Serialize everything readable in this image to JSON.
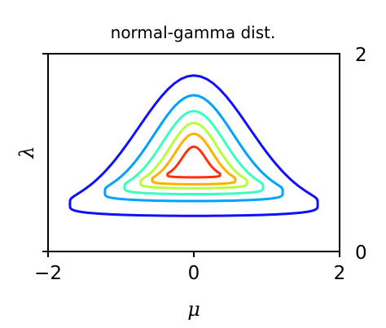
{
  "chart_data": {
    "type": "contour",
    "title": "normal-gamma dist.",
    "xlabel": "μ",
    "ylabel": "λ",
    "xlim": [
      -2,
      2
    ],
    "ylim": [
      0,
      2
    ],
    "xticks": [
      {
        "value": -2,
        "label": "−2"
      },
      {
        "value": 0,
        "label": "0"
      },
      {
        "value": 2,
        "label": "2"
      }
    ],
    "yticks_right": [
      {
        "value": 0,
        "label": "0"
      },
      {
        "value": 2,
        "label": "2"
      }
    ],
    "grid": false,
    "contours": [
      {
        "level": 1,
        "color": "#1010ff",
        "mu_half_width_at_base": 1.7,
        "lambda_min": 0.36,
        "lambda_max": 1.78
      },
      {
        "level": 2,
        "color": "#00a2ff",
        "mu_half_width_at_base": 1.22,
        "lambda_min": 0.51,
        "lambda_max": 1.58
      },
      {
        "level": 3,
        "color": "#3affc0",
        "mu_half_width_at_base": 0.95,
        "lambda_min": 0.58,
        "lambda_max": 1.42
      },
      {
        "level": 4,
        "color": "#b8ff3a",
        "mu_half_width_at_base": 0.73,
        "lambda_min": 0.64,
        "lambda_max": 1.3
      },
      {
        "level": 5,
        "color": "#ffb000",
        "mu_half_width_at_base": 0.57,
        "lambda_min": 0.68,
        "lambda_max": 1.19
      },
      {
        "level": 6,
        "color": "#ff3010",
        "mu_half_width_at_base": 0.36,
        "lambda_min": 0.75,
        "lambda_max": 1.06
      }
    ]
  }
}
